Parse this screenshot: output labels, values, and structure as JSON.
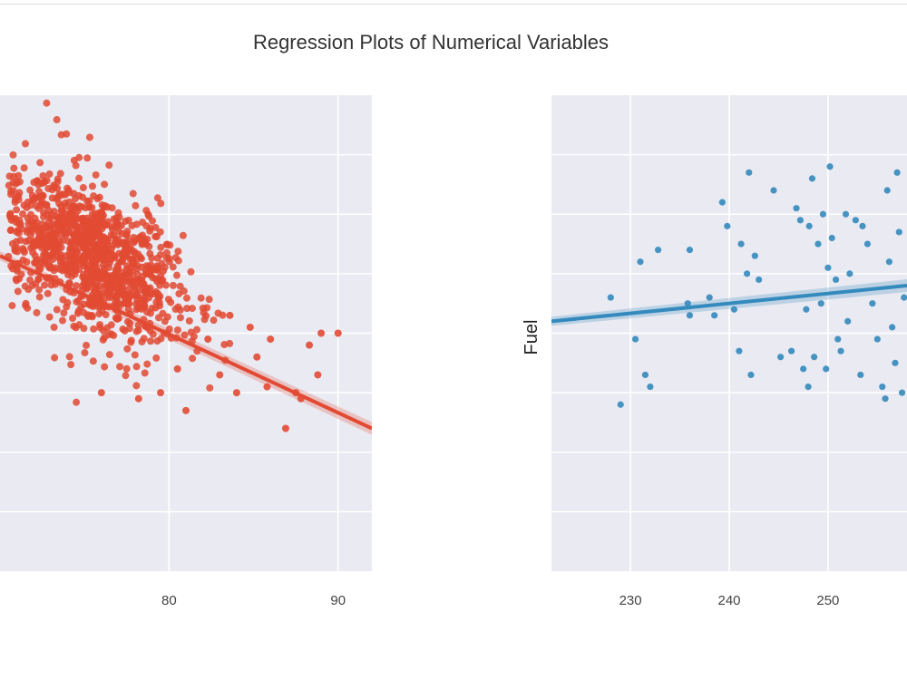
{
  "figure": {
    "title": "Regression Plots of Numerical Variables",
    "background": "#eaeaf2",
    "grid_color": "#ffffff"
  },
  "chart_data": [
    {
      "type": "scatter",
      "title": "",
      "xlabel": "",
      "ylabel": "",
      "grid": true,
      "xlim": [
        70,
        92
      ],
      "ylim": [
        0,
        8
      ],
      "xticks": [
        80,
        90
      ],
      "xtick_labels": [
        "80",
        "90"
      ],
      "color": "#e24a33",
      "regression": {
        "x": [
          70,
          92
        ],
        "y": [
          5.3,
          2.4
        ]
      },
      "cluster": {
        "n": 1100,
        "x_center": 75.5,
        "x_spread": 2.8,
        "y_at": {
          "slope": -0.13,
          "intercept": 15.1
        },
        "y_noise": 0.85
      },
      "points": [
        {
          "x": 78.2,
          "y": 2.9
        },
        {
          "x": 80.5,
          "y": 3.4
        },
        {
          "x": 82.3,
          "y": 3.9
        },
        {
          "x": 84.0,
          "y": 3.0
        },
        {
          "x": 85.2,
          "y": 3.6
        },
        {
          "x": 86.9,
          "y": 2.4
        },
        {
          "x": 87.5,
          "y": 3.0
        },
        {
          "x": 88.3,
          "y": 3.8
        },
        {
          "x": 89.0,
          "y": 4.0
        },
        {
          "x": 90.0,
          "y": 4.0
        },
        {
          "x": 88.8,
          "y": 3.3
        },
        {
          "x": 86.0,
          "y": 3.9
        },
        {
          "x": 85.8,
          "y": 3.1
        },
        {
          "x": 84.8,
          "y": 4.1
        },
        {
          "x": 83.6,
          "y": 4.3
        },
        {
          "x": 81.0,
          "y": 2.7
        },
        {
          "x": 79.5,
          "y": 3.0
        },
        {
          "x": 76.0,
          "y": 3.0
        },
        {
          "x": 83.0,
          "y": 3.3
        },
        {
          "x": 87.8,
          "y": 2.9
        }
      ]
    },
    {
      "type": "scatter",
      "title": "",
      "xlabel": "",
      "ylabel": "Fuel",
      "grid": true,
      "xlim": [
        222,
        258
      ],
      "ylim": [
        0,
        8
      ],
      "xticks": [
        230,
        240,
        250
      ],
      "xtick_labels": [
        "230",
        "240",
        "250"
      ],
      "color": "#348abd",
      "regression": {
        "x": [
          222,
          258
        ],
        "y": [
          4.2,
          4.8
        ]
      },
      "points": [
        {
          "x": 228,
          "y": 4.6
        },
        {
          "x": 229,
          "y": 2.8
        },
        {
          "x": 230.5,
          "y": 3.9
        },
        {
          "x": 231,
          "y": 5.2
        },
        {
          "x": 231.5,
          "y": 3.3
        },
        {
          "x": 232,
          "y": 3.1
        },
        {
          "x": 232.8,
          "y": 5.4
        },
        {
          "x": 235.8,
          "y": 4.5
        },
        {
          "x": 236,
          "y": 4.3
        },
        {
          "x": 236,
          "y": 5.4
        },
        {
          "x": 238,
          "y": 4.6
        },
        {
          "x": 238.5,
          "y": 4.3
        },
        {
          "x": 239.3,
          "y": 6.2
        },
        {
          "x": 239.8,
          "y": 5.8
        },
        {
          "x": 240.5,
          "y": 4.4
        },
        {
          "x": 241,
          "y": 3.7
        },
        {
          "x": 241.2,
          "y": 5.5
        },
        {
          "x": 241.8,
          "y": 5.0
        },
        {
          "x": 242,
          "y": 6.7
        },
        {
          "x": 242.2,
          "y": 3.3
        },
        {
          "x": 242.6,
          "y": 5.3
        },
        {
          "x": 243,
          "y": 4.9
        },
        {
          "x": 244.5,
          "y": 6.4
        },
        {
          "x": 245.2,
          "y": 3.6
        },
        {
          "x": 246.3,
          "y": 3.7
        },
        {
          "x": 246.8,
          "y": 6.1
        },
        {
          "x": 247.2,
          "y": 5.9
        },
        {
          "x": 247.5,
          "y": 3.4
        },
        {
          "x": 247.8,
          "y": 4.4
        },
        {
          "x": 248,
          "y": 3.1
        },
        {
          "x": 248.1,
          "y": 5.8
        },
        {
          "x": 248.4,
          "y": 6.6
        },
        {
          "x": 248.6,
          "y": 3.6
        },
        {
          "x": 249,
          "y": 5.5
        },
        {
          "x": 249.3,
          "y": 4.5
        },
        {
          "x": 249.5,
          "y": 6.0
        },
        {
          "x": 249.8,
          "y": 3.4
        },
        {
          "x": 250,
          "y": 5.1
        },
        {
          "x": 250.2,
          "y": 6.8
        },
        {
          "x": 250.4,
          "y": 5.6
        },
        {
          "x": 250.8,
          "y": 4.9
        },
        {
          "x": 251,
          "y": 3.9
        },
        {
          "x": 251.3,
          "y": 3.7
        },
        {
          "x": 251.8,
          "y": 6.0
        },
        {
          "x": 252,
          "y": 4.2
        },
        {
          "x": 252.2,
          "y": 5.0
        },
        {
          "x": 252.8,
          "y": 5.9
        },
        {
          "x": 253.3,
          "y": 3.3
        },
        {
          "x": 253.5,
          "y": 5.8
        },
        {
          "x": 254,
          "y": 5.5
        },
        {
          "x": 254.5,
          "y": 4.5
        },
        {
          "x": 255,
          "y": 3.9
        },
        {
          "x": 255.5,
          "y": 3.1
        },
        {
          "x": 255.8,
          "y": 2.9
        },
        {
          "x": 256,
          "y": 6.4
        },
        {
          "x": 256.2,
          "y": 5.2
        },
        {
          "x": 256.5,
          "y": 4.1
        },
        {
          "x": 256.8,
          "y": 3.5
        },
        {
          "x": 257,
          "y": 6.7
        },
        {
          "x": 257.2,
          "y": 5.7
        },
        {
          "x": 257.5,
          "y": 3.0
        },
        {
          "x": 257.7,
          "y": 4.6
        }
      ]
    }
  ]
}
